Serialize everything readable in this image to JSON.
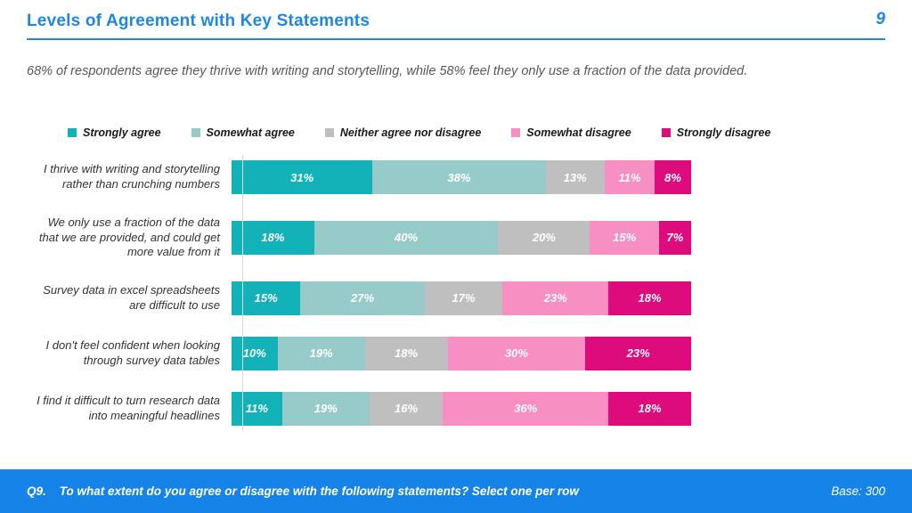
{
  "page": {
    "title": "Levels of Agreement with Key Statements",
    "page_number": "9",
    "subtitle": "68% of respondents agree they thrive with writing and storytelling, while 58% feel they only use a fraction of the data provided.",
    "footer": {
      "question_label": "Q9.",
      "question_text": "To what extent do you agree or disagree with the following statements?  Select one per row",
      "base_text": "Base: 300"
    }
  },
  "colors": {
    "accent_blue": "#1E87E6",
    "footer_blue": "#1583E8",
    "axis_line": "#D9D9D9"
  },
  "chart_data": {
    "type": "bar",
    "orientation": "horizontal",
    "stacked": true,
    "unit": "%",
    "xlim": [
      0,
      100
    ],
    "legend_position": "top",
    "grid": false,
    "categories": [
      "I thrive with writing and storytelling rather than crunching numbers",
      "We only use a fraction of the data that we are provided, and could get more value from it",
      "Survey data in excel spreadsheets are difficult to use",
      "I don't feel confident when looking through survey data tables",
      "I find it difficult to turn research data into meaningful headlines"
    ],
    "series": [
      {
        "name": "Strongly agree",
        "color": "#12B2B8",
        "values": [
          31,
          18,
          15,
          10,
          11
        ]
      },
      {
        "name": "Somewhat agree",
        "color": "#97CBC9",
        "values": [
          38,
          40,
          27,
          19,
          19
        ]
      },
      {
        "name": "Neither agree nor disagree",
        "color": "#BFBFBF",
        "values": [
          13,
          20,
          17,
          18,
          16
        ]
      },
      {
        "name": "Somewhat disagree",
        "color": "#F78FC2",
        "values": [
          11,
          15,
          23,
          30,
          36
        ]
      },
      {
        "name": "Strongly disagree",
        "color": "#DE0B7D",
        "values": [
          8,
          7,
          18,
          23,
          18
        ]
      }
    ]
  }
}
